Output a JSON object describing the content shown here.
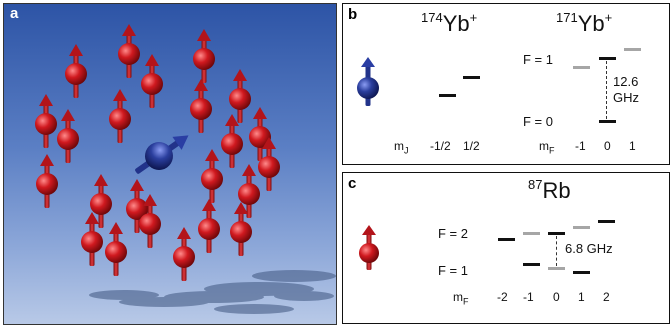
{
  "panel_a": {
    "label": "a",
    "colors": {
      "background_top": "#2d54a6",
      "background_bottom": "#b8c9e7",
      "atom_red": "#c0161b",
      "ion_blue": "#2b3f9e",
      "shadow": "#3e557f"
    }
  },
  "panel_b": {
    "label": "b",
    "isotope_1": {
      "mass": "174",
      "name": "Yb",
      "charge": "+"
    },
    "isotope_2": {
      "mass": "171",
      "name": "Yb",
      "charge": "+"
    },
    "levels": {
      "upper": "F = 1",
      "lower": "F = 0"
    },
    "splitting": {
      "value": "12.6",
      "unit": "GHz"
    },
    "axis_1": {
      "label_main": "m",
      "label_sub": "J",
      "ticks": [
        "-1/2",
        "1/2"
      ]
    },
    "axis_2": {
      "label_main": "m",
      "label_sub": "F",
      "ticks": [
        "-1",
        "0",
        "1"
      ]
    },
    "icon": "blue-ion-spin-icon"
  },
  "panel_c": {
    "label": "c",
    "isotope": {
      "mass": "87",
      "name": "Rb"
    },
    "levels": {
      "upper": "F = 2",
      "lower": "F = 1"
    },
    "splitting": "6.8 GHz",
    "axis": {
      "label_main": "m",
      "label_sub": "F",
      "ticks": [
        "-2",
        "-1",
        "0",
        "1",
        "2"
      ]
    },
    "icon": "red-atom-spin-icon"
  }
}
